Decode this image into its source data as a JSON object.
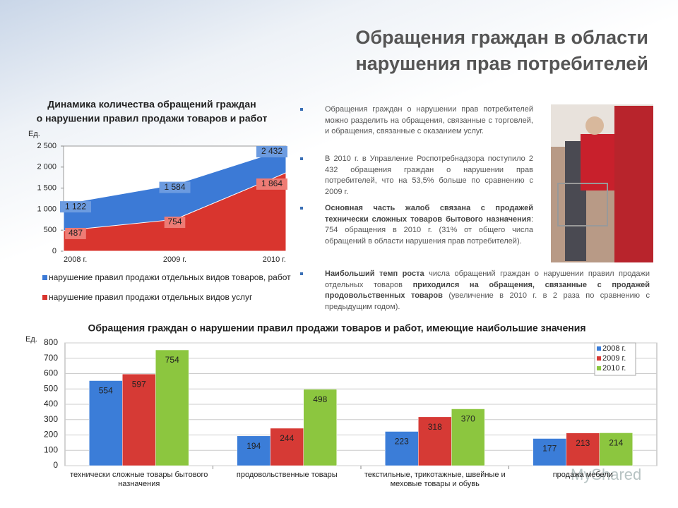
{
  "header": {
    "title": [
      "Обращения граждан в области",
      "нарушения прав потребителей"
    ]
  },
  "bullets": [
    {
      "segments": [
        {
          "text": "Обращения граждан о нарушении прав потребителей можно разделить на обращения, связанные с торговлей, и обращения, связанные с оказанием услуг.",
          "bold": false
        }
      ]
    },
    {
      "segments": [
        {
          "text": "В 2010 г. в Управление Роспотребнадзора поступило 2 432 обращения граждан о нарушении прав потребителей, что на 53,5% больше по сравнению с 2009 г.",
          "bold": false
        }
      ]
    },
    {
      "segments": [
        {
          "text": "Основная часть жалоб связана с продажей технически сложных товаров бытового назначения",
          "bold": true
        },
        {
          "text": ": 754 обращения в 2010 г. (31% от общего числа обращений в области нарушения прав потребителей).",
          "bold": false
        }
      ]
    },
    {
      "segments": [
        {
          "text": "Наибольший темп роста",
          "bold": true
        },
        {
          "text": " числа обращений граждан о нарушении правил продажи отдельных товаров ",
          "bold": false
        },
        {
          "text": "приходился на обращения, связанные с продажей продовольственных товаров",
          "bold": true
        },
        {
          "text": " (увеличение в 2010 г. в 2 раза по сравнению с предыдущим годом).",
          "bold": false
        }
      ]
    }
  ],
  "watermark": "MyShared",
  "chart_data": [
    {
      "type": "area",
      "title": [
        "Динамика количества обращений граждан",
        "о нарушении правил продажи товаров и работ"
      ],
      "y_label": "Ед.",
      "categories": [
        "2008 г.",
        "2009 г.",
        "2010 г."
      ],
      "series": [
        {
          "name": "нарушение правил продажи отдельных видов товаров, работ",
          "color": "#3c7ad6",
          "values": [
            1122,
            1584,
            2432
          ],
          "value_labels": [
            "1 122",
            "1 584",
            "2 432"
          ]
        },
        {
          "name": "нарушение правил продажи отдельных видов услуг",
          "color": "#d9352e",
          "values": [
            487,
            754,
            1864
          ],
          "value_labels": [
            "487",
            "754",
            "1 864"
          ]
        }
      ],
      "ylim": [
        0,
        2500
      ],
      "yticks": [
        {
          "value": 0,
          "label": "0"
        },
        {
          "value": 500,
          "label": "500"
        },
        {
          "value": 1000,
          "label": "1 000"
        },
        {
          "value": 1500,
          "label": "1 500"
        },
        {
          "value": 2000,
          "label": "2 000"
        },
        {
          "value": 2500,
          "label": "2 500"
        }
      ],
      "grid": false
    },
    {
      "type": "bar",
      "title": "Обращения граждан о нарушении правил продажи товаров и работ, имеющие наибольшие значения",
      "y_label": "Ед.",
      "categories": [
        "технически сложные товары бытового назначения",
        "продовольственные товары",
        "текстильные, трикотажные, швейные и меховые товары и обувь",
        "продажа мебели"
      ],
      "series": [
        {
          "name": "2008 г.",
          "color": "#3b7dd8",
          "values": [
            554,
            194,
            223,
            177
          ]
        },
        {
          "name": "2009 г.",
          "color": "#d63a35",
          "values": [
            597,
            244,
            318,
            213
          ]
        },
        {
          "name": "2010 г.",
          "color": "#8cc63f",
          "values": [
            754,
            498,
            370,
            214
          ]
        }
      ],
      "ylim": [
        0,
        800
      ],
      "yticks": [
        0,
        100,
        200,
        300,
        400,
        500,
        600,
        700,
        800
      ],
      "grid": true,
      "legend": "top-right"
    }
  ]
}
